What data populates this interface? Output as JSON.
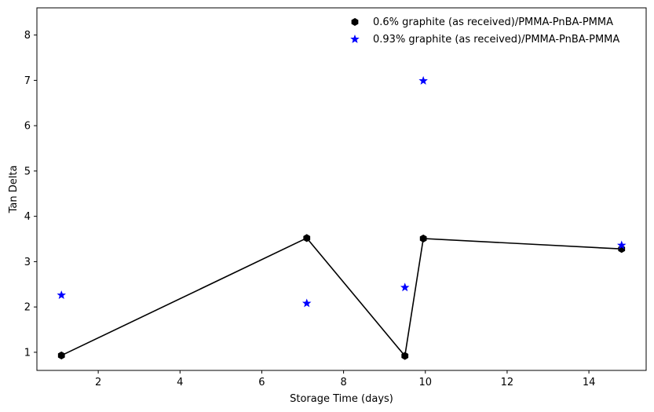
{
  "chart_data": {
    "type": "scatter",
    "xlabel": "Storage Time (days)",
    "ylabel": "Tan Delta",
    "xlim": [
      0.5,
      15.4
    ],
    "ylim": [
      0.6,
      8.6
    ],
    "xticks": [
      2,
      4,
      6,
      8,
      10,
      12,
      14
    ],
    "yticks": [
      1,
      2,
      3,
      4,
      5,
      6,
      7,
      8
    ],
    "grid": false,
    "legend_position": "top-right",
    "series": [
      {
        "name": "0.6% graphite (as received)/PMMA-PnBA-PMMA",
        "marker": "hexagon",
        "color": "#000000",
        "connected": true,
        "x": [
          1.1,
          7.1,
          9.5,
          9.95,
          14.8
        ],
        "y": [
          0.93,
          3.52,
          0.92,
          3.51,
          3.28
        ]
      },
      {
        "name": "0.93% graphite (as received)/PMMA-PnBA-PMMA",
        "marker": "star",
        "color": "#0000ff",
        "connected": false,
        "x": [
          1.1,
          7.1,
          9.5,
          9.95,
          14.8
        ],
        "y": [
          2.26,
          2.08,
          2.43,
          6.99,
          3.36
        ]
      }
    ]
  }
}
